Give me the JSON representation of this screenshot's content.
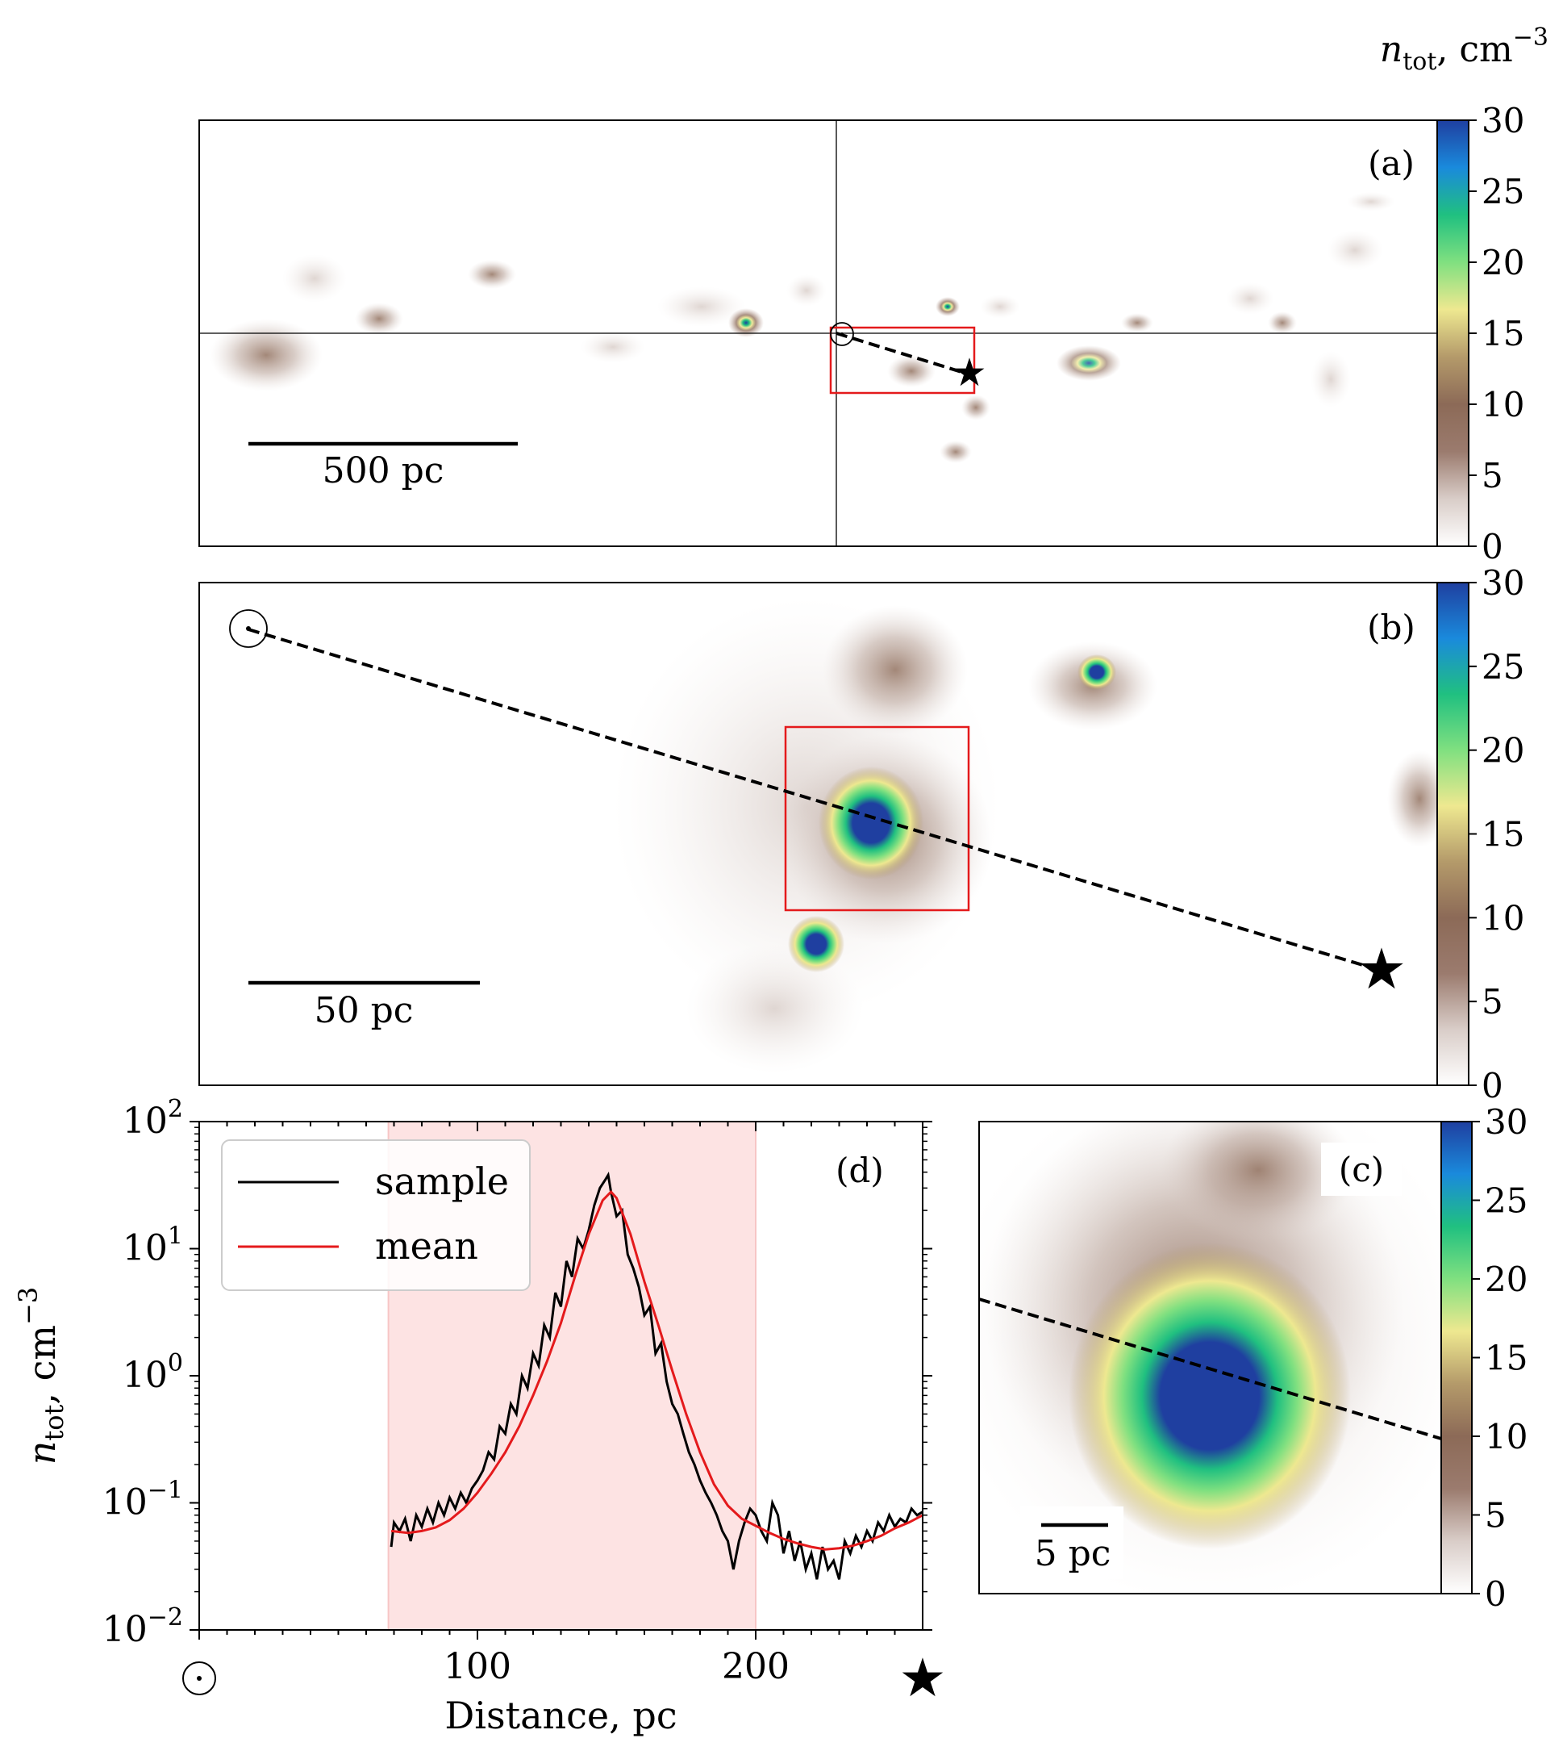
{
  "colorbar_title": {
    "base": "n",
    "sub": "tot",
    "rest": ",  cm",
    "sup": "−3"
  },
  "colorbar": {
    "min": 0,
    "max": 30,
    "ticks": [
      "0",
      "5",
      "10",
      "15",
      "20",
      "25",
      "30"
    ],
    "stops": [
      "#ffffff",
      "#d9cdc8",
      "#9b7b6e",
      "#8c6a57",
      "#b49a6a",
      "#eee890",
      "#80e080",
      "#20c080",
      "#1a8adc",
      "#1f3fa0"
    ]
  },
  "panels": {
    "a": {
      "label": "(a)",
      "scalebar": "500 pc"
    },
    "b": {
      "label": "(b)",
      "scalebar": "50 pc"
    },
    "c": {
      "label": "(c)",
      "scalebar": "5 pc"
    },
    "d": {
      "label": "(d)"
    }
  },
  "markers": {
    "sun": "☉",
    "star": "★"
  },
  "chart_data": {
    "type": "line",
    "title": "",
    "xlabel": "Distance, pc",
    "ylabel": {
      "base": "n",
      "sub": "tot",
      "rest": ", cm",
      "sup": "−3"
    },
    "xlim": [
      0,
      260
    ],
    "ylim_log10": [
      -2,
      2
    ],
    "xticks": [
      "100",
      "200"
    ],
    "yticks": [
      {
        "base": "10",
        "exp": "−2"
      },
      {
        "base": "10",
        "exp": "−1"
      },
      {
        "base": "10",
        "exp": "0"
      },
      {
        "base": "10",
        "exp": "1"
      },
      {
        "base": "10",
        "exp": "2"
      }
    ],
    "shaded_region": [
      68,
      200
    ],
    "legend": [
      "sample",
      "mean"
    ],
    "series": [
      {
        "name": "mean",
        "color": "#e41a1c",
        "x": [
          69,
          75,
          80,
          85,
          90,
          95,
          100,
          105,
          110,
          115,
          120,
          125,
          130,
          135,
          140,
          145,
          148,
          150,
          155,
          160,
          165,
          170,
          175,
          180,
          185,
          190,
          195,
          200,
          205,
          210,
          215,
          220,
          225,
          230,
          235,
          240,
          245,
          250,
          255,
          260
        ],
        "y": [
          0.06,
          0.058,
          0.06,
          0.064,
          0.073,
          0.09,
          0.12,
          0.17,
          0.25,
          0.4,
          0.7,
          1.3,
          2.6,
          6,
          13,
          24,
          28,
          25,
          13,
          5.5,
          2.5,
          1.1,
          0.5,
          0.25,
          0.14,
          0.095,
          0.075,
          0.066,
          0.058,
          0.052,
          0.048,
          0.045,
          0.043,
          0.044,
          0.046,
          0.05,
          0.055,
          0.063,
          0.07,
          0.08
        ]
      },
      {
        "name": "sample",
        "color": "#000000",
        "x": [
          69,
          70,
          72,
          74,
          76,
          78,
          80,
          82,
          84,
          86,
          88,
          90,
          92,
          94,
          96,
          98,
          100,
          102,
          104,
          106,
          108,
          110,
          112,
          114,
          116,
          118,
          120,
          122,
          124,
          126,
          128,
          130,
          132,
          134,
          136,
          138,
          140,
          142,
          144,
          146,
          147,
          148,
          150,
          152,
          154,
          156,
          158,
          160,
          162,
          164,
          166,
          168,
          170,
          172,
          174,
          176,
          178,
          180,
          182,
          184,
          186,
          188,
          190,
          192,
          194,
          196,
          198,
          200,
          202,
          204,
          206,
          208,
          210,
          212,
          214,
          216,
          218,
          220,
          222,
          224,
          226,
          228,
          230,
          232,
          234,
          236,
          238,
          240,
          242,
          244,
          246,
          248,
          250,
          252,
          254,
          256,
          258,
          260
        ],
        "y": [
          0.045,
          0.07,
          0.06,
          0.075,
          0.05,
          0.08,
          0.065,
          0.09,
          0.07,
          0.1,
          0.08,
          0.11,
          0.09,
          0.12,
          0.1,
          0.13,
          0.15,
          0.18,
          0.25,
          0.22,
          0.4,
          0.35,
          0.6,
          0.5,
          1.0,
          0.8,
          1.5,
          1.2,
          2.5,
          2.0,
          4.5,
          3.5,
          8,
          6,
          12,
          10,
          14,
          22,
          30,
          35,
          38,
          28,
          18,
          20,
          9,
          7,
          5,
          3,
          3.5,
          1.5,
          1.8,
          0.9,
          0.6,
          0.5,
          0.35,
          0.25,
          0.2,
          0.15,
          0.12,
          0.1,
          0.08,
          0.06,
          0.05,
          0.03,
          0.05,
          0.07,
          0.09,
          0.08,
          0.06,
          0.05,
          0.1,
          0.08,
          0.04,
          0.06,
          0.035,
          0.05,
          0.03,
          0.04,
          0.025,
          0.045,
          0.03,
          0.035,
          0.025,
          0.05,
          0.04,
          0.055,
          0.045,
          0.06,
          0.05,
          0.07,
          0.06,
          0.08,
          0.065,
          0.075,
          0.07,
          0.09,
          0.08,
          0.085
        ]
      }
    ]
  }
}
